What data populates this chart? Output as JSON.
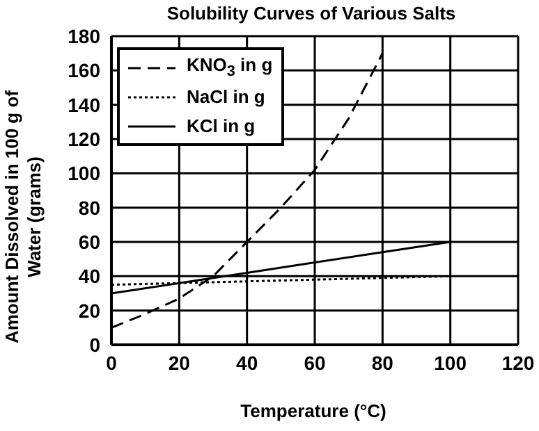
{
  "chart_data": {
    "type": "line",
    "title": "Solubility Curves of Various Salts",
    "xlabel": "Temperature (°C)",
    "ylabel": "Amount Dissolved in 100 g of Water (grams)",
    "xlim": [
      0,
      120
    ],
    "xticks": [
      0,
      20,
      40,
      60,
      80,
      100,
      120
    ],
    "ylim": [
      0,
      180
    ],
    "yticks": [
      0,
      20,
      40,
      60,
      80,
      100,
      120,
      140,
      160,
      180
    ],
    "grid": true,
    "legend": "top left",
    "marker": "none",
    "series": [
      {
        "name": "KNO$_{3}$ in g",
        "color": "#000000",
        "line_style": "dashed",
        "x": [
          0,
          10,
          20,
          30,
          40,
          50,
          60,
          70,
          80
        ],
        "values": [
          10,
          18,
          27,
          40,
          60,
          80,
          102,
          132,
          170
        ]
      },
      {
        "name": "NaCl in g",
        "color": "#000000",
        "line_style": "dotted",
        "x": [
          0,
          20,
          40,
          60,
          80,
          100
        ],
        "values": [
          35,
          36,
          37,
          38,
          39,
          40
        ]
      },
      {
        "name": "KCl in g",
        "color": "#000000",
        "line_style": "solid",
        "x": [
          0,
          20,
          40,
          60,
          80,
          100
        ],
        "values": [
          30,
          36,
          42,
          48,
          54,
          60
        ]
      }
    ]
  }
}
